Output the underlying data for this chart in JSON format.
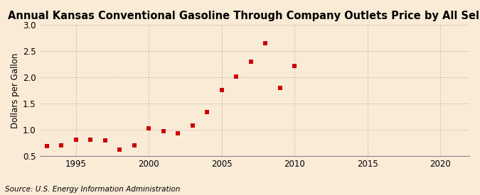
{
  "title": "Annual Kansas Conventional Gasoline Through Company Outlets Price by All Sellers",
  "ylabel": "Dollars per Gallon",
  "source": "Source: U.S. Energy Information Administration",
  "background_color": "#faebd7",
  "years": [
    1993,
    1994,
    1995,
    1996,
    1997,
    1998,
    1999,
    2000,
    2001,
    2002,
    2003,
    2004,
    2005,
    2006,
    2007,
    2008,
    2009,
    2010
  ],
  "values": [
    0.69,
    0.71,
    0.81,
    0.81,
    0.8,
    0.63,
    0.7,
    1.03,
    0.97,
    0.93,
    1.09,
    1.34,
    1.76,
    2.02,
    2.3,
    2.65,
    1.8,
    2.22
  ],
  "marker_color": "#cc0000",
  "marker_size": 4,
  "xlim": [
    1992.5,
    2022
  ],
  "ylim": [
    0.5,
    3.0
  ],
  "xticks": [
    1995,
    2000,
    2005,
    2010,
    2015,
    2020
  ],
  "yticks": [
    0.5,
    1.0,
    1.5,
    2.0,
    2.5,
    3.0
  ],
  "grid_color": "#aaaaaa",
  "title_fontsize": 10.5,
  "label_fontsize": 8.5,
  "source_fontsize": 7.5
}
